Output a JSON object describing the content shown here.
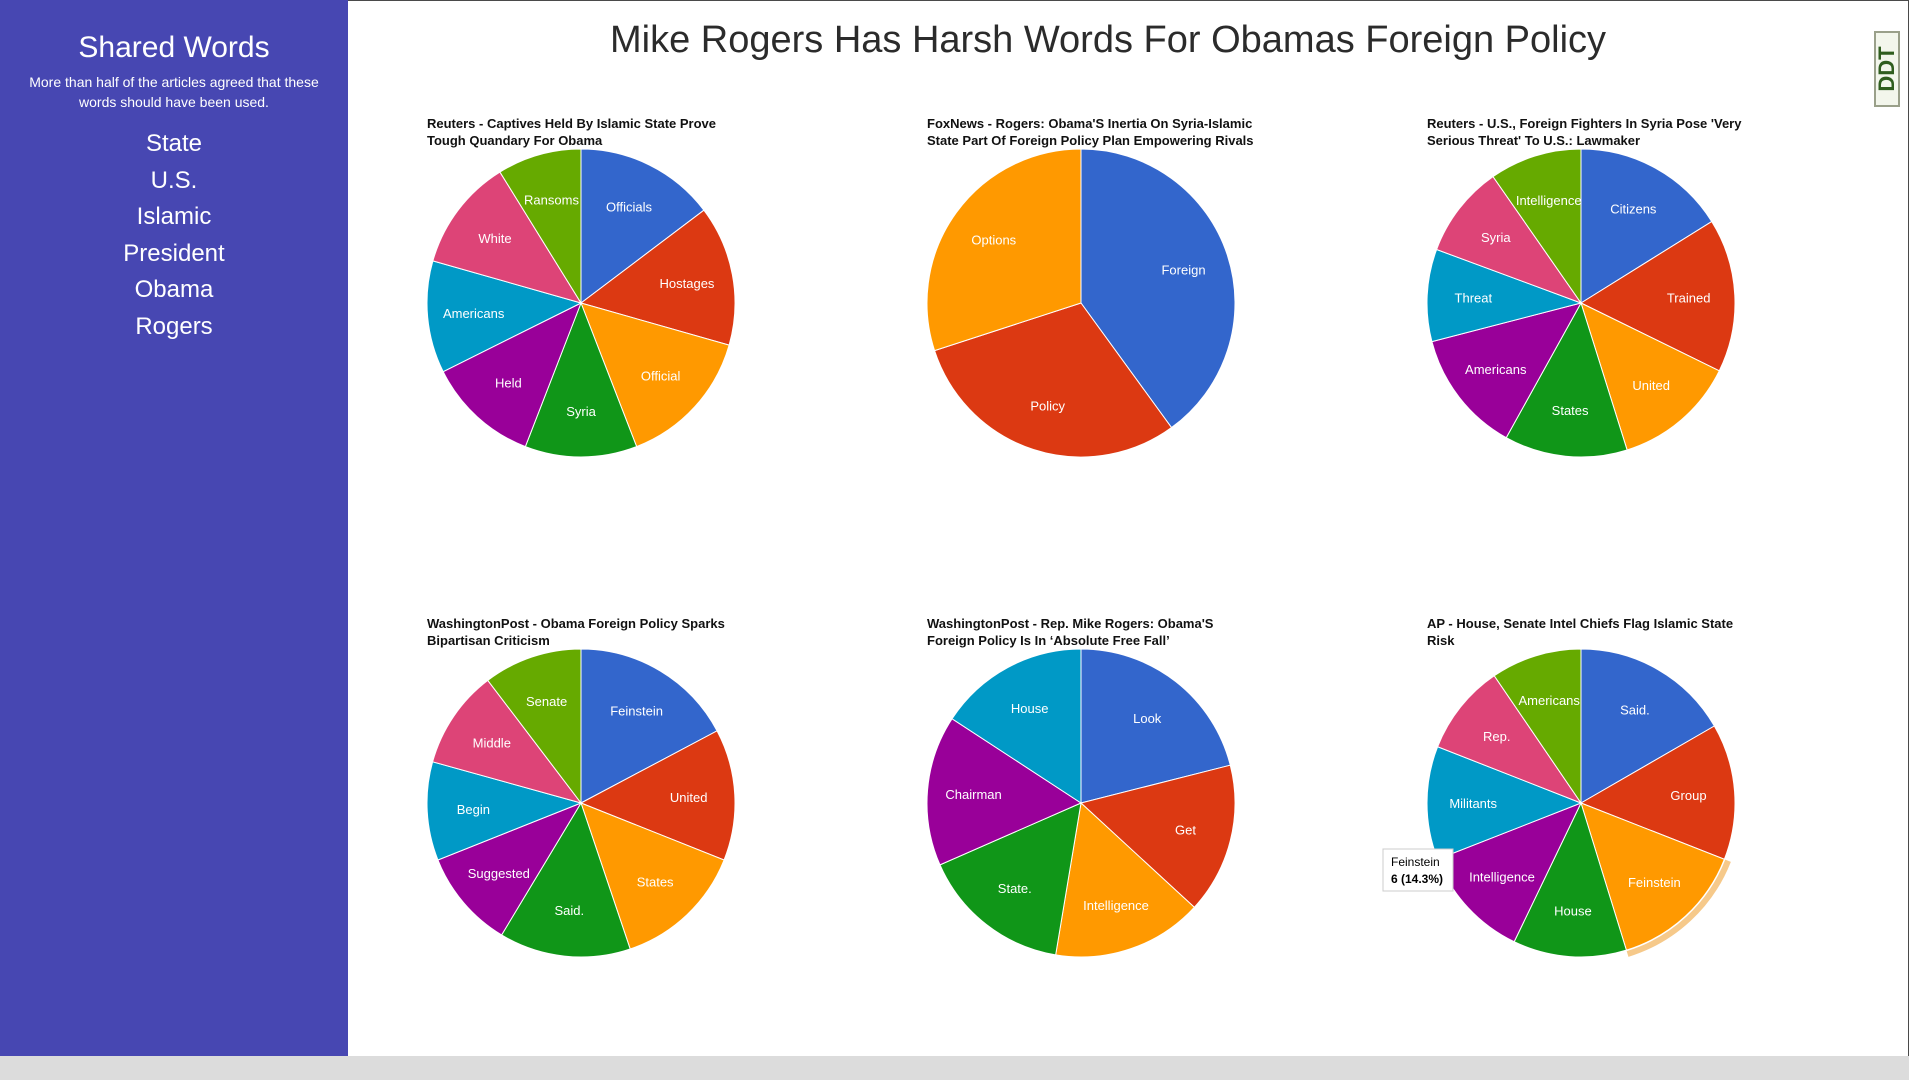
{
  "sidebar": {
    "title": "Shared Words",
    "description": "More than half of the articles agreed that these words should have been used.",
    "words": [
      "State",
      "U.S.",
      "Islamic",
      "President",
      "Obama",
      "Rogers"
    ]
  },
  "page": {
    "title": "Mike Rogers Has Harsh Words For Obamas Foreign Policy",
    "logo_text": "DDT"
  },
  "colors": [
    "#3366cc",
    "#dc3912",
    "#ff9900",
    "#109618",
    "#990099",
    "#0099c6",
    "#dd4477",
    "#66aa00"
  ],
  "chart_data": [
    {
      "type": "pie",
      "title": "Reuters - Captives Held By Islamic State Prove Tough Quandary For Obama",
      "slices": [
        {
          "label": "Officials",
          "value": 5,
          "color": "#3366cc"
        },
        {
          "label": "Hostages",
          "value": 5,
          "color": "#dc3912"
        },
        {
          "label": "Official",
          "value": 5,
          "color": "#ff9900"
        },
        {
          "label": "Syria",
          "value": 4,
          "color": "#109618"
        },
        {
          "label": "Held",
          "value": 4,
          "color": "#990099"
        },
        {
          "label": "Americans",
          "value": 4,
          "color": "#0099c6"
        },
        {
          "label": "White",
          "value": 4,
          "color": "#dd4477"
        },
        {
          "label": "Ransoms",
          "value": 3,
          "color": "#66aa00"
        }
      ]
    },
    {
      "type": "pie",
      "title": "FoxNews - Rogers: Obama'S Inertia On Syria-Islamic State Part Of Foreign Policy Plan Empowering Rivals",
      "slices": [
        {
          "label": "Foreign",
          "value": 4,
          "color": "#3366cc"
        },
        {
          "label": "Policy",
          "value": 3,
          "color": "#dc3912"
        },
        {
          "label": "Options",
          "value": 3,
          "color": "#ff9900"
        }
      ]
    },
    {
      "type": "pie",
      "title": "Reuters - U.S., Foreign Fighters In Syria Pose 'Very Serious Threat' To U.S.: Lawmaker",
      "slices": [
        {
          "label": "Citizens",
          "value": 5,
          "color": "#3366cc"
        },
        {
          "label": "Trained",
          "value": 5,
          "color": "#dc3912"
        },
        {
          "label": "United",
          "value": 4,
          "color": "#ff9900"
        },
        {
          "label": "States",
          "value": 4,
          "color": "#109618"
        },
        {
          "label": "Americans",
          "value": 4,
          "color": "#990099"
        },
        {
          "label": "Threat",
          "value": 3,
          "color": "#0099c6"
        },
        {
          "label": "Syria",
          "value": 3,
          "color": "#dd4477"
        },
        {
          "label": "Intelligence",
          "value": 3,
          "color": "#66aa00"
        }
      ]
    },
    {
      "type": "pie",
      "title": "WashingtonPost - Obama Foreign Policy Sparks Bipartisan Criticism",
      "slices": [
        {
          "label": "Feinstein",
          "value": 5,
          "color": "#3366cc"
        },
        {
          "label": "United",
          "value": 4,
          "color": "#dc3912"
        },
        {
          "label": "States",
          "value": 4,
          "color": "#ff9900"
        },
        {
          "label": "Said.",
          "value": 4,
          "color": "#109618"
        },
        {
          "label": "Suggested",
          "value": 3,
          "color": "#990099"
        },
        {
          "label": "Begin",
          "value": 3,
          "color": "#0099c6"
        },
        {
          "label": "Middle",
          "value": 3,
          "color": "#dd4477"
        },
        {
          "label": "Senate",
          "value": 3,
          "color": "#66aa00"
        }
      ]
    },
    {
      "type": "pie",
      "title": "WashingtonPost - Rep. Mike Rogers: Obama'S Foreign Policy Is In ‘Absolute Free Fall’",
      "slices": [
        {
          "label": "Look",
          "value": 4,
          "color": "#3366cc"
        },
        {
          "label": "Get",
          "value": 3,
          "color": "#dc3912"
        },
        {
          "label": "Intelligence",
          "value": 3,
          "color": "#ff9900"
        },
        {
          "label": "State.",
          "value": 3,
          "color": "#109618"
        },
        {
          "label": "Chairman",
          "value": 3,
          "color": "#990099"
        },
        {
          "label": "House",
          "value": 3,
          "color": "#0099c6"
        }
      ]
    },
    {
      "type": "pie",
      "title": "AP - House, Senate Intel Chiefs Flag Islamic State Risk",
      "slices": [
        {
          "label": "Said.",
          "value": 7,
          "color": "#3366cc"
        },
        {
          "label": "Group",
          "value": 6,
          "color": "#dc3912"
        },
        {
          "label": "Feinstein",
          "value": 6,
          "color": "#ff9900"
        },
        {
          "label": "House",
          "value": 5,
          "color": "#109618"
        },
        {
          "label": "Intelligence",
          "value": 5,
          "color": "#990099"
        },
        {
          "label": "Militants",
          "value": 5,
          "color": "#0099c6"
        },
        {
          "label": "Rep.",
          "value": 4,
          "color": "#dd4477"
        },
        {
          "label": "Americans",
          "value": 4,
          "color": "#66aa00"
        }
      ],
      "tooltip": {
        "label": "Feinstein",
        "value_text": "6 (14.3%)"
      }
    }
  ]
}
